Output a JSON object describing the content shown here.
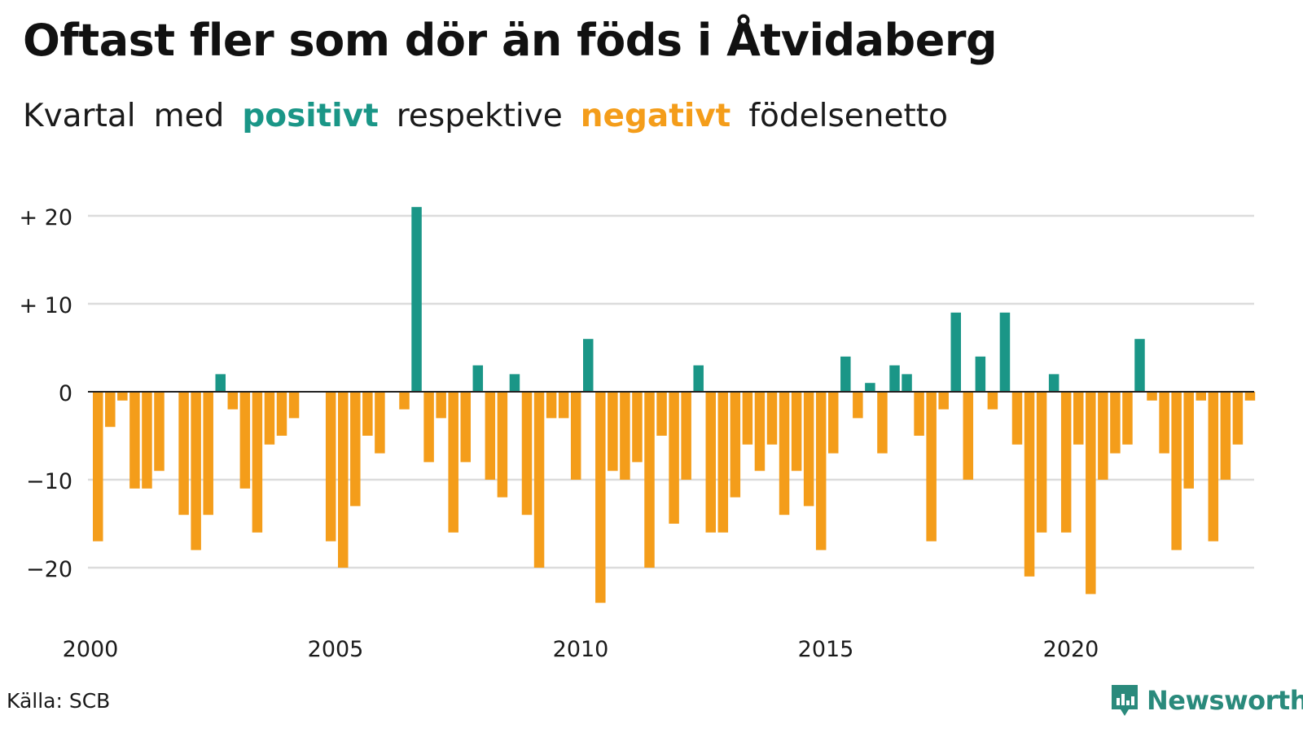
{
  "chart_data": {
    "type": "bar",
    "title": "Oftast fler som dör än föds i Åtvidaberg",
    "subtitle_parts": [
      {
        "text": "Kvartal",
        "style": "normal"
      },
      {
        "text": "med",
        "style": "normal"
      },
      {
        "text": "positivt",
        "style": "positive"
      },
      {
        "text": "respektive",
        "style": "normal"
      },
      {
        "text": "negativt",
        "style": "negative"
      },
      {
        "text": "födelsenetto",
        "style": "normal"
      }
    ],
    "x_start": "2000-Q1",
    "x_ticks": [
      "2000",
      "2005",
      "2010",
      "2015",
      "2020"
    ],
    "y_ticks": [
      {
        "value": 20,
        "label": "+ 20"
      },
      {
        "value": 10,
        "label": "+ 10"
      },
      {
        "value": 0,
        "label": "0"
      },
      {
        "value": -10,
        "label": "−10"
      },
      {
        "value": -20,
        "label": "−20"
      }
    ],
    "ylim": [
      -25,
      22
    ],
    "grid": true,
    "colors": {
      "positive": "#1a9687",
      "negative": "#f49d1a"
    },
    "values": [
      -17,
      -4,
      -1,
      -11,
      -11,
      -9,
      0,
      -14,
      -18,
      -14,
      2,
      -2,
      -11,
      -16,
      -6,
      -5,
      -3,
      0,
      0,
      -17,
      -20,
      -13,
      -5,
      -7,
      0,
      -2,
      21,
      -8,
      -3,
      -16,
      -8,
      3,
      -10,
      -12,
      2,
      -14,
      -20,
      -3,
      -3,
      -10,
      6,
      -24,
      -9,
      -10,
      -8,
      -20,
      -5,
      -15,
      -10,
      3,
      -16,
      -16,
      -12,
      -6,
      -9,
      -6,
      -14,
      -9,
      -13,
      -18,
      -7,
      4,
      -3,
      1,
      -7,
      3,
      2,
      -5,
      -17,
      -2,
      9,
      -10,
      4,
      -2,
      9,
      -6,
      -21,
      -16,
      2,
      -16,
      -6,
      -23,
      -10,
      -7,
      -6,
      6,
      -1,
      -7,
      -18,
      -11,
      -1,
      -17,
      -10,
      -6,
      -1
    ]
  },
  "source": "Källa: SCB",
  "brand": {
    "name": "Newsworthy",
    "icon": "newsworthy-logo-icon",
    "color": "#2a8a7c"
  }
}
